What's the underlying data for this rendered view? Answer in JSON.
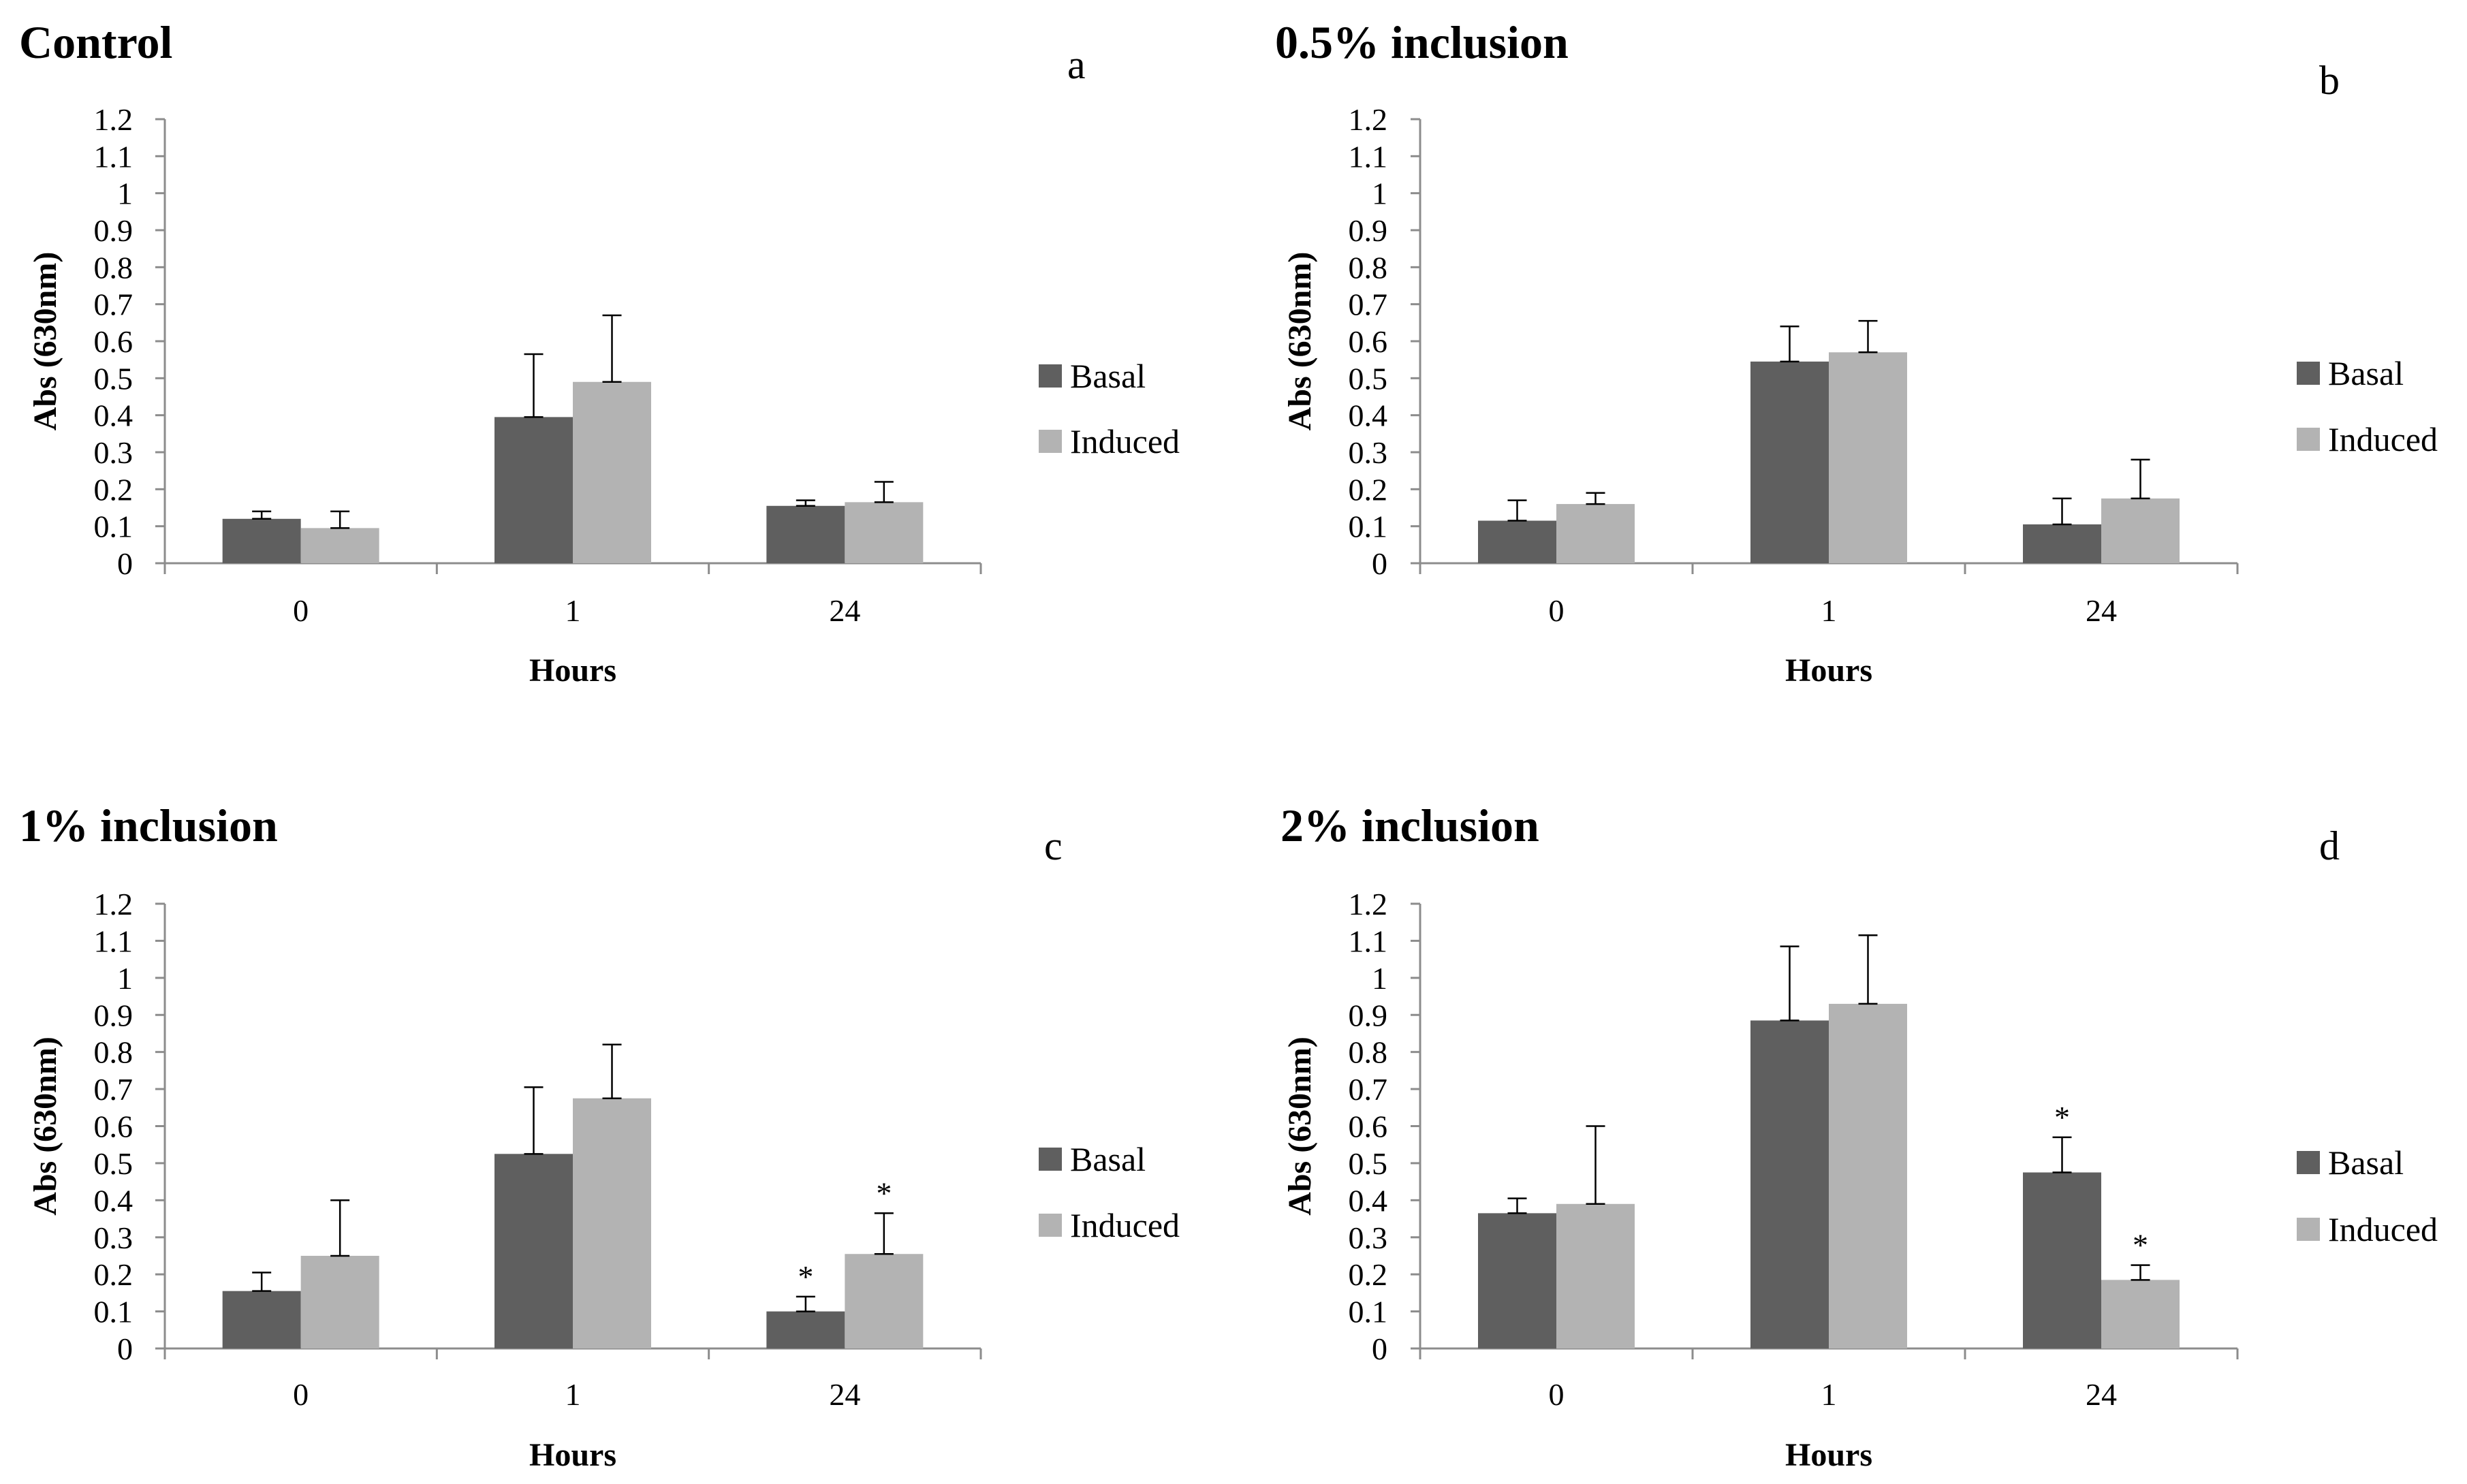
{
  "chart_data": [
    {
      "type": "bar",
      "title": "Control",
      "panel_label": "a",
      "xlabel": "Hours",
      "ylabel": "Abs (630nm)",
      "categories": [
        "0",
        "1",
        "24"
      ],
      "ylim": [
        0,
        1.2
      ],
      "yticks": [
        "0",
        "0.1",
        "0.2",
        "0.3",
        "0.4",
        "0.5",
        "0.6",
        "0.7",
        "0.8",
        "0.9",
        "1",
        "1.1",
        "1.2"
      ],
      "series": [
        {
          "name": "Basal",
          "color": "#5f5f5f",
          "values": [
            0.12,
            0.395,
            0.155
          ],
          "errors": [
            0.02,
            0.17,
            0.015
          ],
          "markers": [
            "",
            "",
            ""
          ]
        },
        {
          "name": "Induced",
          "color": "#b3b3b3",
          "values": [
            0.095,
            0.49,
            0.165
          ],
          "errors": [
            0.045,
            0.18,
            0.055
          ],
          "markers": [
            "",
            "",
            ""
          ]
        }
      ]
    },
    {
      "type": "bar",
      "title": "0.5% inclusion",
      "panel_label": "b",
      "xlabel": "Hours",
      "ylabel": "Abs (630nm)",
      "categories": [
        "0",
        "1",
        "24"
      ],
      "ylim": [
        0,
        1.2
      ],
      "yticks": [
        "0",
        "0.1",
        "0.2",
        "0.3",
        "0.4",
        "0.5",
        "0.6",
        "0.7",
        "0.8",
        "0.9",
        "1",
        "1.1",
        "1.2"
      ],
      "series": [
        {
          "name": "Basal",
          "color": "#5f5f5f",
          "values": [
            0.115,
            0.545,
            0.105
          ],
          "errors": [
            0.055,
            0.095,
            0.07
          ],
          "markers": [
            "",
            "",
            ""
          ]
        },
        {
          "name": "Induced",
          "color": "#b3b3b3",
          "values": [
            0.16,
            0.57,
            0.175
          ],
          "errors": [
            0.03,
            0.085,
            0.105
          ],
          "markers": [
            "",
            "",
            ""
          ]
        }
      ]
    },
    {
      "type": "bar",
      "title": "1% inclusion",
      "panel_label": "c",
      "xlabel": "Hours",
      "ylabel": "Abs (630nm)",
      "categories": [
        "0",
        "1",
        "24"
      ],
      "ylim": [
        0,
        1.2
      ],
      "yticks": [
        "0",
        "0.1",
        "0.2",
        "0.3",
        "0.4",
        "0.5",
        "0.6",
        "0.7",
        "0.8",
        "0.9",
        "1",
        "1.1",
        "1.2"
      ],
      "series": [
        {
          "name": "Basal",
          "color": "#5f5f5f",
          "values": [
            0.155,
            0.525,
            0.1
          ],
          "errors": [
            0.05,
            0.18,
            0.04
          ],
          "markers": [
            "",
            "",
            "*"
          ]
        },
        {
          "name": "Induced",
          "color": "#b3b3b3",
          "values": [
            0.25,
            0.675,
            0.255
          ],
          "errors": [
            0.15,
            0.145,
            0.11
          ],
          "markers": [
            "",
            "",
            "*"
          ]
        }
      ]
    },
    {
      "type": "bar",
      "title": "2% inclusion",
      "panel_label": "d",
      "xlabel": "Hours",
      "ylabel": "Abs (630nm)",
      "categories": [
        "0",
        "1",
        "24"
      ],
      "ylim": [
        0,
        1.2
      ],
      "yticks": [
        "0",
        "0.1",
        "0.2",
        "0.3",
        "0.4",
        "0.5",
        "0.6",
        "0.7",
        "0.8",
        "0.9",
        "1",
        "1.1",
        "1.2"
      ],
      "series": [
        {
          "name": "Basal",
          "color": "#5f5f5f",
          "values": [
            0.365,
            0.885,
            0.475
          ],
          "errors": [
            0.04,
            0.2,
            0.095
          ],
          "markers": [
            "",
            "",
            "*"
          ]
        },
        {
          "name": "Induced",
          "color": "#b3b3b3",
          "values": [
            0.39,
            0.93,
            0.185
          ],
          "errors": [
            0.21,
            0.185,
            0.04
          ],
          "markers": [
            "",
            "",
            "*"
          ]
        }
      ]
    }
  ]
}
